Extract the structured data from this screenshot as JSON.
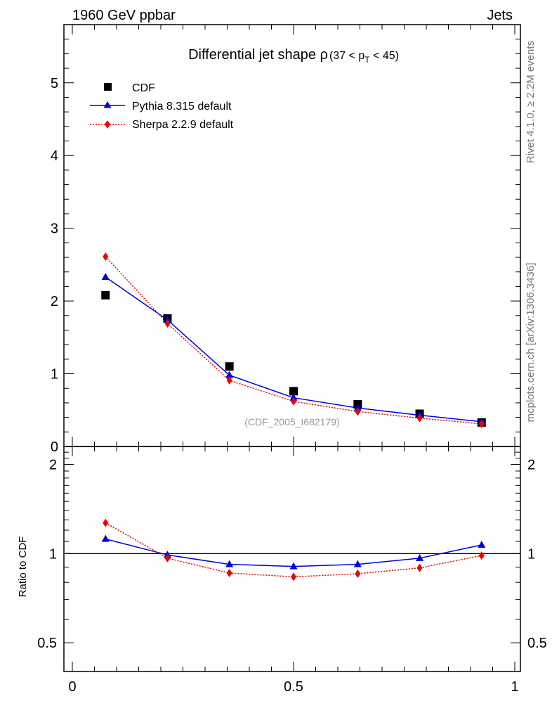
{
  "header": {
    "left": "1960 GeV ppbar",
    "right": "Jets"
  },
  "side_text": {
    "upper": "Rivet 4.1.0, ≥ 2.2M events",
    "lower": "mcplots.cern.ch [arXiv:1306.3436]"
  },
  "colors": {
    "cdf": "#000000",
    "pythia": "#0000dd",
    "sherpa": "#ee0000",
    "frame": "#000000",
    "watermark": "#999999"
  },
  "chart_data": [
    {
      "type": "scatter",
      "title": "Differential jet shape ρ",
      "title_suffix": "(37 < p",
      "title_sub": "T",
      "title_end": " < 45)",
      "annotation": "(CDF_2005_I682179)",
      "xlim": [
        0,
        1
      ],
      "ylim": [
        0,
        5.8
      ],
      "yticks": [
        0,
        1,
        2,
        3,
        4,
        5
      ],
      "legend_position": "top-left",
      "series": [
        {
          "name": "CDF",
          "marker": "square",
          "x": [
            0.075,
            0.215,
            0.355,
            0.5,
            0.645,
            0.785,
            0.925
          ],
          "y": [
            2.08,
            1.76,
            1.1,
            0.76,
            0.58,
            0.45,
            0.33
          ]
        },
        {
          "name": "Pythia 8.315 default",
          "marker": "triangle",
          "line": "solid",
          "x": [
            0.075,
            0.215,
            0.355,
            0.5,
            0.645,
            0.785,
            0.925
          ],
          "y": [
            2.33,
            1.74,
            0.98,
            0.67,
            0.53,
            0.43,
            0.34
          ]
        },
        {
          "name": "Sherpa 2.2.9 default",
          "marker": "diamond",
          "line": "dotted",
          "x": [
            0.075,
            0.215,
            0.355,
            0.5,
            0.645,
            0.785,
            0.925
          ],
          "y": [
            2.61,
            1.69,
            0.91,
            0.62,
            0.48,
            0.39,
            0.31
          ]
        }
      ]
    },
    {
      "type": "line",
      "ylabel": "Ratio to CDF",
      "xlim": [
        0,
        1
      ],
      "ylim": [
        0.4,
        2.3
      ],
      "yscale": "log",
      "yticks": [
        0.5,
        1,
        2
      ],
      "ytick_labels": [
        "0.5",
        "1",
        "2"
      ],
      "xticks": [
        0,
        0.5,
        1
      ],
      "xtick_labels": [
        "0",
        "0.5",
        "1"
      ],
      "reference_line": 1,
      "series": [
        {
          "name": "Pythia 8.315 default",
          "marker": "triangle",
          "line": "solid",
          "x": [
            0.075,
            0.215,
            0.355,
            0.5,
            0.645,
            0.785,
            0.925
          ],
          "y": [
            1.12,
            0.99,
            0.92,
            0.905,
            0.92,
            0.965,
            1.07
          ]
        },
        {
          "name": "Sherpa 2.2.9 default",
          "marker": "diamond",
          "line": "dotted",
          "x": [
            0.075,
            0.215,
            0.355,
            0.5,
            0.645,
            0.785,
            0.925
          ],
          "y": [
            1.27,
            0.965,
            0.86,
            0.835,
            0.855,
            0.895,
            0.985
          ]
        }
      ]
    }
  ]
}
